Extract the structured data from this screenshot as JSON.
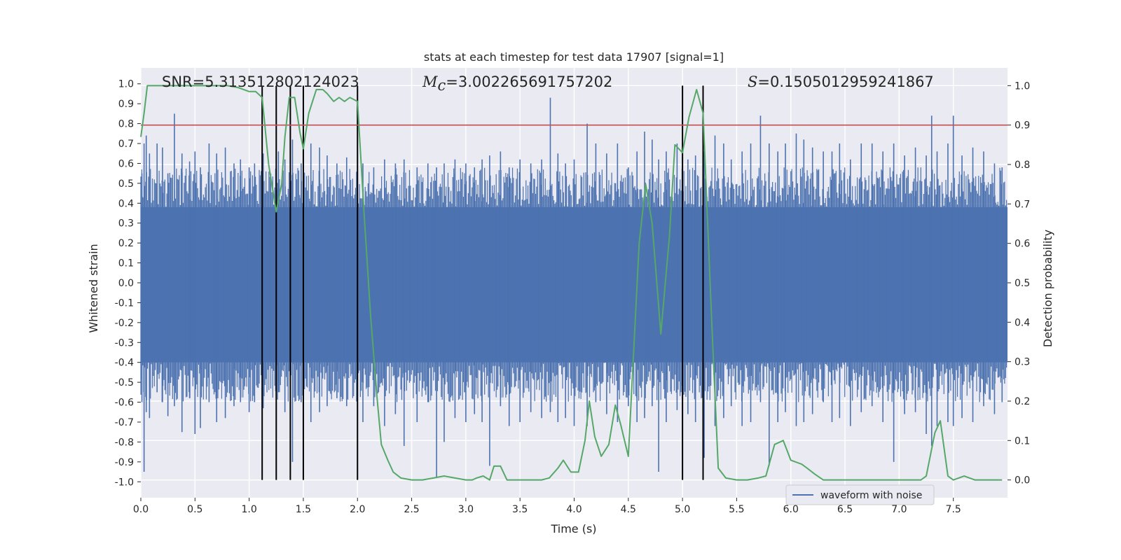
{
  "chart_data": {
    "type": "line",
    "title": "stats at each timestep for test data 17907 [signal=1]",
    "xlabel": "Time (s)",
    "ylabel_left": "Whitened strain",
    "ylabel_right": "Detection probability",
    "xlim": [
      0.0,
      8.0
    ],
    "ylim_left": [
      -1.08,
      1.08
    ],
    "ylim_right": [
      -0.045,
      1.045
    ],
    "x_ticks": [
      "0.0",
      "0.5",
      "1.0",
      "1.5",
      "2.0",
      "2.5",
      "3.0",
      "3.5",
      "4.0",
      "4.5",
      "5.0",
      "5.5",
      "6.0",
      "6.5",
      "7.0",
      "7.5"
    ],
    "y_left_ticks": [
      "1.0",
      "0.9",
      "0.8",
      "0.7",
      "0.6",
      "0.5",
      "0.4",
      "0.3",
      "0.2",
      "0.1",
      "0.0",
      "-0.1",
      "-0.2",
      "-0.3",
      "-0.4",
      "-0.5",
      "-0.6",
      "-0.7",
      "-0.8",
      "-0.9",
      "-1.0"
    ],
    "y_right_ticks": [
      "1.0",
      "0.9",
      "0.8",
      "0.7",
      "0.6",
      "0.5",
      "0.4",
      "0.3",
      "0.2",
      "0.1",
      "0.0"
    ],
    "annotations": {
      "snr": "SNR=5.313512802124023",
      "mc_symbol": "M",
      "mc_sub": "c",
      "mc_value": "=3.002265691757202",
      "s_symbol": "S",
      "s_value": "=0.1505012959241867"
    },
    "threshold": {
      "value": 0.9,
      "axis": "right",
      "color": "#c44e52"
    },
    "event_lines": [
      1.12,
      1.25,
      1.38,
      1.5,
      2.0,
      5.0,
      5.19
    ],
    "event_line_color": "#000000",
    "series": [
      {
        "name": "waveform with noise",
        "axis": "left",
        "color": "#4c72b0",
        "spikes": [
          [
            0.01,
            0.55,
            -0.6
          ],
          [
            0.03,
            0.7,
            -0.95
          ],
          [
            0.05,
            0.74,
            -0.65
          ],
          [
            0.08,
            0.65,
            -0.68
          ],
          [
            0.15,
            0.7,
            -0.55
          ],
          [
            0.2,
            0.68,
            -0.6
          ],
          [
            0.25,
            0.55,
            -0.67
          ],
          [
            0.31,
            0.85,
            -0.62
          ],
          [
            0.38,
            0.65,
            -0.75
          ],
          [
            0.45,
            0.61,
            -0.58
          ],
          [
            0.5,
            0.66,
            -0.76
          ],
          [
            0.55,
            0.58,
            -0.73
          ],
          [
            0.63,
            0.7,
            -0.6
          ],
          [
            0.7,
            0.65,
            -0.7
          ],
          [
            0.78,
            0.68,
            -0.68
          ],
          [
            0.86,
            0.6,
            -0.62
          ],
          [
            0.92,
            0.62,
            -0.6
          ],
          [
            1.0,
            0.58,
            -0.65
          ],
          [
            1.05,
            0.6,
            -0.6
          ],
          [
            1.13,
            0.65,
            -0.63
          ],
          [
            1.27,
            0.66,
            -0.55
          ],
          [
            1.33,
            0.62,
            -0.65
          ],
          [
            1.4,
            0.72,
            -0.9
          ],
          [
            1.48,
            0.6,
            -0.6
          ],
          [
            1.57,
            0.7,
            -0.7
          ],
          [
            1.65,
            0.68,
            -0.65
          ],
          [
            1.72,
            0.64,
            -0.62
          ],
          [
            1.81,
            0.6,
            -0.58
          ],
          [
            1.9,
            0.63,
            -0.62
          ],
          [
            2.05,
            0.6,
            -0.7
          ],
          [
            2.15,
            0.58,
            -0.62
          ],
          [
            2.25,
            0.62,
            -0.72
          ],
          [
            2.35,
            0.6,
            -0.66
          ],
          [
            2.43,
            0.62,
            -0.82
          ],
          [
            2.55,
            0.58,
            -0.7
          ],
          [
            2.65,
            0.6,
            -0.6
          ],
          [
            2.73,
            0.58,
            -0.98
          ],
          [
            2.8,
            0.6,
            -0.8
          ],
          [
            2.9,
            0.62,
            -0.68
          ],
          [
            3.0,
            0.6,
            -0.7
          ],
          [
            3.08,
            0.58,
            -0.66
          ],
          [
            3.15,
            0.62,
            -0.7
          ],
          [
            3.22,
            0.64,
            -0.92
          ],
          [
            3.32,
            0.66,
            -0.62
          ],
          [
            3.4,
            0.58,
            -0.72
          ],
          [
            3.5,
            0.62,
            -0.7
          ],
          [
            3.6,
            0.6,
            -0.65
          ],
          [
            3.7,
            0.62,
            -0.68
          ],
          [
            3.78,
            0.93,
            -0.65
          ],
          [
            3.85,
            0.65,
            -0.7
          ],
          [
            3.92,
            0.6,
            -0.68
          ],
          [
            4.0,
            0.62,
            -0.72
          ],
          [
            4.12,
            0.8,
            -0.72
          ],
          [
            4.2,
            0.7,
            -0.6
          ],
          [
            4.3,
            0.65,
            -0.66
          ],
          [
            4.4,
            0.7,
            -0.7
          ],
          [
            4.5,
            0.58,
            -0.62
          ],
          [
            4.58,
            0.66,
            -0.7
          ],
          [
            4.65,
            0.76,
            -0.68
          ],
          [
            4.72,
            0.72,
            -0.62
          ],
          [
            4.78,
            0.62,
            -0.95
          ],
          [
            4.85,
            0.66,
            -0.7
          ],
          [
            4.95,
            0.7,
            -0.64
          ],
          [
            5.05,
            0.62,
            -0.66
          ],
          [
            5.12,
            0.64,
            -0.7
          ],
          [
            5.2,
            0.66,
            -0.88
          ],
          [
            5.3,
            0.74,
            -0.72
          ],
          [
            5.38,
            0.7,
            -0.68
          ],
          [
            5.45,
            0.62,
            -0.62
          ],
          [
            5.55,
            0.66,
            -0.72
          ],
          [
            5.63,
            0.7,
            -0.7
          ],
          [
            5.72,
            0.84,
            -0.6
          ],
          [
            5.8,
            0.7,
            -0.92
          ],
          [
            5.88,
            0.66,
            -0.7
          ],
          [
            5.95,
            0.7,
            -0.65
          ],
          [
            6.05,
            0.75,
            -0.72
          ],
          [
            6.12,
            0.72,
            -0.7
          ],
          [
            6.2,
            0.68,
            -0.66
          ],
          [
            6.3,
            0.66,
            -0.6
          ],
          [
            6.38,
            0.66,
            -0.7
          ],
          [
            6.45,
            0.7,
            -0.68
          ],
          [
            6.55,
            0.62,
            -0.72
          ],
          [
            6.65,
            0.7,
            -0.65
          ],
          [
            6.75,
            0.7,
            -0.62
          ],
          [
            6.85,
            0.66,
            -0.7
          ],
          [
            6.95,
            0.7,
            -0.9
          ],
          [
            7.05,
            0.64,
            -0.66
          ],
          [
            7.15,
            0.68,
            -0.65
          ],
          [
            7.25,
            0.64,
            -0.76
          ],
          [
            7.3,
            0.84,
            -0.82
          ],
          [
            7.35,
            0.66,
            -0.72
          ],
          [
            7.45,
            0.7,
            -0.7
          ],
          [
            7.5,
            0.84,
            -0.72
          ],
          [
            7.58,
            0.64,
            -0.68
          ],
          [
            7.68,
            0.68,
            -0.7
          ],
          [
            7.78,
            0.66,
            -0.62
          ],
          [
            7.88,
            0.6,
            -0.66
          ],
          [
            7.95,
            0.58,
            -0.6
          ]
        ]
      },
      {
        "name": "Detection probability",
        "axis": "right",
        "color": "#55a868",
        "x": [
          0.0,
          0.03,
          0.06,
          0.09,
          0.2,
          0.5,
          0.8,
          0.9,
          1.0,
          1.06,
          1.12,
          1.18,
          1.25,
          1.3,
          1.33,
          1.37,
          1.42,
          1.47,
          1.5,
          1.55,
          1.62,
          1.68,
          1.72,
          1.78,
          1.83,
          1.88,
          1.93,
          2.0,
          2.06,
          2.12,
          2.18,
          2.22,
          2.28,
          2.33,
          2.4,
          2.5,
          2.6,
          2.7,
          2.8,
          2.9,
          3.0,
          3.06,
          3.1,
          3.16,
          3.22,
          3.26,
          3.32,
          3.38,
          3.5,
          3.6,
          3.7,
          3.77,
          3.85,
          3.9,
          3.97,
          4.04,
          4.1,
          4.14,
          4.19,
          4.25,
          4.32,
          4.38,
          4.43,
          4.5,
          4.6,
          4.66,
          4.72,
          4.8,
          4.88,
          4.93,
          5.0,
          5.06,
          5.13,
          5.19,
          5.27,
          5.33,
          5.4,
          5.5,
          5.6,
          5.7,
          5.77,
          5.85,
          5.93,
          6.0,
          6.1,
          6.15,
          6.22,
          6.3,
          6.4,
          6.5,
          6.6,
          6.7,
          6.8,
          6.9,
          7.0,
          7.1,
          7.2,
          7.25,
          7.33,
          7.38,
          7.45,
          7.5,
          7.6,
          7.7,
          7.8,
          7.95
        ],
        "y": [
          0.87,
          0.93,
          1.0,
          1.0,
          1.0,
          1.0,
          1.0,
          0.995,
          0.985,
          0.985,
          0.97,
          0.8,
          0.68,
          0.75,
          0.87,
          0.97,
          0.97,
          0.88,
          0.84,
          0.93,
          0.99,
          0.99,
          0.98,
          0.96,
          0.97,
          0.96,
          0.97,
          0.96,
          0.68,
          0.42,
          0.21,
          0.09,
          0.05,
          0.02,
          0.005,
          0.0,
          0.0,
          0.005,
          0.01,
          0.005,
          0.0,
          0.0,
          0.005,
          0.01,
          0.0,
          0.035,
          0.035,
          0.0,
          0.0,
          0.0,
          0.0,
          0.005,
          0.03,
          0.05,
          0.02,
          0.02,
          0.1,
          0.2,
          0.11,
          0.06,
          0.09,
          0.19,
          0.14,
          0.06,
          0.6,
          0.75,
          0.65,
          0.37,
          0.62,
          0.85,
          0.83,
          0.92,
          0.99,
          0.93,
          0.4,
          0.03,
          0.005,
          0.0,
          0.0,
          0.005,
          0.01,
          0.09,
          0.1,
          0.05,
          0.04,
          0.03,
          0.015,
          0.0,
          0.0,
          0.0,
          0.0,
          0.0,
          0.0,
          0.0,
          0.0,
          0.0,
          0.0,
          0.01,
          0.12,
          0.15,
          0.01,
          0.0,
          0.01,
          0.0,
          0.0,
          0.0
        ]
      }
    ],
    "legend": {
      "position": "bottom-right",
      "entries": [
        "waveform with noise"
      ]
    }
  }
}
